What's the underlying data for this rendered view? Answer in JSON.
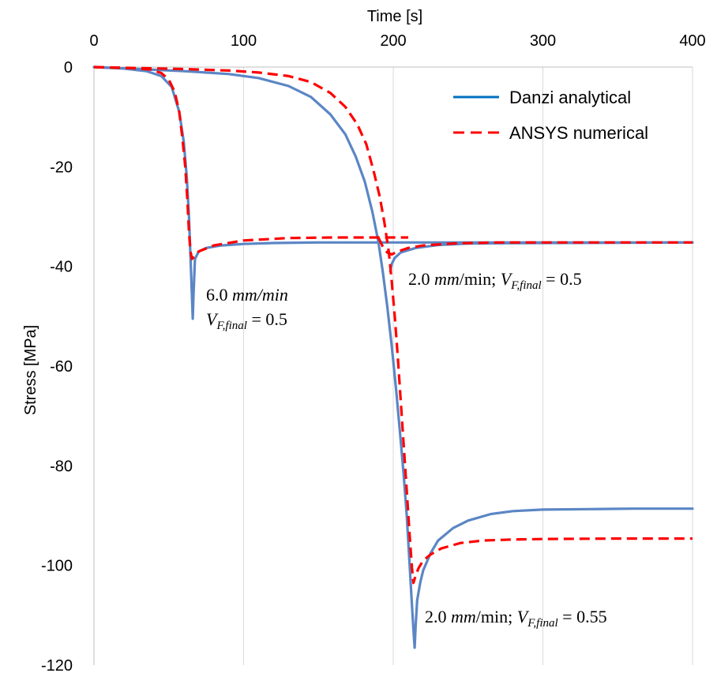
{
  "chart_data": {
    "type": "line",
    "title": "",
    "xlabel": "Time [s]",
    "ylabel": "Stress [MPa]",
    "xlim": [
      0,
      400
    ],
    "ylim": [
      -120,
      0
    ],
    "x_axis_position": "top",
    "xticks": [
      0,
      100,
      200,
      300,
      400
    ],
    "yticks": [
      0,
      -20,
      -40,
      -60,
      -80,
      -100,
      -120
    ],
    "grid": "vertical",
    "legend": "top-right",
    "series": [
      {
        "name": "Danzi analytical",
        "style": "solid",
        "color": "#5b86c5",
        "curves": [
          [
            [
              0,
              0
            ],
            [
              20,
              -0.3
            ],
            [
              35,
              -0.8
            ],
            [
              45,
              -1.8
            ],
            [
              52,
              -4
            ],
            [
              57,
              -9
            ],
            [
              60,
              -15
            ],
            [
              62,
              -22
            ],
            [
              63.5,
              -30
            ],
            [
              64.5,
              -38
            ],
            [
              65.5,
              -46
            ],
            [
              66,
              -50.5
            ],
            [
              66.5,
              -46
            ],
            [
              67.5,
              -38.5
            ],
            [
              70,
              -37
            ],
            [
              75,
              -36.3
            ],
            [
              85,
              -35.8
            ],
            [
              100,
              -35.5
            ],
            [
              120,
              -35.3
            ],
            [
              150,
              -35.2
            ],
            [
              200,
              -35.2
            ],
            [
              250,
              -35.2
            ],
            [
              300,
              -35.2
            ],
            [
              350,
              -35.2
            ],
            [
              400,
              -35.2
            ]
          ],
          [
            [
              0,
              0
            ],
            [
              30,
              -0.4
            ],
            [
              60,
              -0.8
            ],
            [
              90,
              -1.4
            ],
            [
              110,
              -2.2
            ],
            [
              130,
              -3.8
            ],
            [
              145,
              -6
            ],
            [
              158,
              -9.5
            ],
            [
              168,
              -13.5
            ],
            [
              175,
              -18
            ],
            [
              181,
              -23
            ],
            [
              186,
              -29
            ],
            [
              190,
              -35
            ],
            [
              193,
              -41
            ],
            [
              196,
              -48
            ],
            [
              199,
              -56
            ],
            [
              202,
              -65
            ],
            [
              205,
              -75
            ],
            [
              207,
              -82
            ],
            [
              209,
              -90
            ],
            [
              211,
              -100
            ],
            [
              212.5,
              -108
            ],
            [
              213.5,
              -113
            ],
            [
              214.3,
              -116.5
            ],
            [
              215,
              -112
            ],
            [
              216,
              -107
            ],
            [
              218,
              -103.5
            ],
            [
              220,
              -101
            ],
            [
              225,
              -97.5
            ],
            [
              230,
              -95
            ],
            [
              240,
              -92.5
            ],
            [
              250,
              -91
            ],
            [
              265,
              -89.7
            ],
            [
              280,
              -89.1
            ],
            [
              300,
              -88.8
            ],
            [
              330,
              -88.7
            ],
            [
              360,
              -88.6
            ],
            [
              400,
              -88.6
            ]
          ],
          [
            [
              198,
              -41
            ],
            [
              199,
              -39.5
            ],
            [
              201,
              -38.3
            ],
            [
              205,
              -37.2
            ],
            [
              215,
              -36.3
            ],
            [
              230,
              -35.7
            ],
            [
              250,
              -35.4
            ],
            [
              300,
              -35.3
            ],
            [
              400,
              -35.2
            ]
          ]
        ]
      },
      {
        "name": "ANSYS numerical",
        "style": "dashed",
        "color": "#ff0000",
        "curves": [
          [
            [
              0,
              0
            ],
            [
              25,
              -0.2
            ],
            [
              38,
              -0.5
            ],
            [
              45,
              -1.2
            ],
            [
              50,
              -2.5
            ],
            [
              54,
              -5
            ],
            [
              57,
              -9
            ],
            [
              59,
              -14
            ],
            [
              61,
              -20
            ],
            [
              62.5,
              -27
            ],
            [
              63.5,
              -33
            ],
            [
              64.5,
              -37
            ],
            [
              65.5,
              -38.5
            ],
            [
              67,
              -38
            ],
            [
              70,
              -37
            ],
            [
              80,
              -35.8
            ],
            [
              100,
              -34.8
            ],
            [
              130,
              -34.3
            ],
            [
              160,
              -34.2
            ],
            [
              190,
              -34.2
            ],
            [
              210,
              -34.2
            ]
          ],
          [
            [
              0,
              0
            ],
            [
              30,
              -0.2
            ],
            [
              60,
              -0.4
            ],
            [
              90,
              -0.7
            ],
            [
              110,
              -1.1
            ],
            [
              130,
              -1.8
            ],
            [
              145,
              -3
            ],
            [
              158,
              -5.2
            ],
            [
              168,
              -8
            ],
            [
              176,
              -11.5
            ],
            [
              182,
              -15.5
            ],
            [
              187,
              -21
            ],
            [
              191,
              -26
            ],
            [
              194,
              -31
            ],
            [
              197,
              -37
            ],
            [
              199,
              -43
            ],
            [
              201,
              -50
            ],
            [
              203,
              -58
            ],
            [
              205,
              -67
            ],
            [
              207,
              -76
            ],
            [
              209,
              -85
            ],
            [
              211,
              -94
            ],
            [
              212.5,
              -100.5
            ],
            [
              213.5,
              -103.5
            ],
            [
              215,
              -102
            ],
            [
              217,
              -100.5
            ],
            [
              220,
              -99
            ],
            [
              225,
              -97.8
            ],
            [
              232,
              -96.6
            ],
            [
              245,
              -95.5
            ],
            [
              260,
              -95
            ],
            [
              280,
              -94.8
            ],
            [
              300,
              -94.7
            ],
            [
              350,
              -94.6
            ],
            [
              400,
              -94.6
            ]
          ],
          [
            [
              190,
              -34.2
            ],
            [
              193,
              -36
            ],
            [
              196,
              -37.2
            ],
            [
              199,
              -37.6
            ],
            [
              203,
              -37
            ],
            [
              210,
              -36.3
            ],
            [
              220,
              -35.8
            ],
            [
              240,
              -35.4
            ],
            [
              270,
              -35.2
            ],
            [
              300,
              -35.2
            ],
            [
              400,
              -35.2
            ]
          ]
        ]
      }
    ],
    "annotations": [
      {
        "line1": "6.0 mm/min",
        "line2": "V_F,final = 0.5",
        "x": 72,
        "y": -46
      },
      {
        "line1": "2.0 mm/min; V_F,final = 0.5",
        "x": 210,
        "y": -42
      },
      {
        "line1": "2.0 mm/min; V_F,final = 0.55",
        "x": 219,
        "y": -115
      }
    ]
  },
  "annotation_parts": {
    "a1": {
      "num": "6.0",
      "unit": "mm/min",
      "v": "V",
      "sub": "F,final",
      "eq": " = 0.5"
    },
    "a2": {
      "num": "2.0",
      "unit": "mm",
      "unit2": "/min; ",
      "v": "V",
      "sub": "F,final",
      "eq": " = 0.5"
    },
    "a3": {
      "num": "2.0",
      "unit": "mm",
      "unit2": "/min; ",
      "v": "V",
      "sub": "F,final",
      "eq": " = 0.55"
    }
  }
}
